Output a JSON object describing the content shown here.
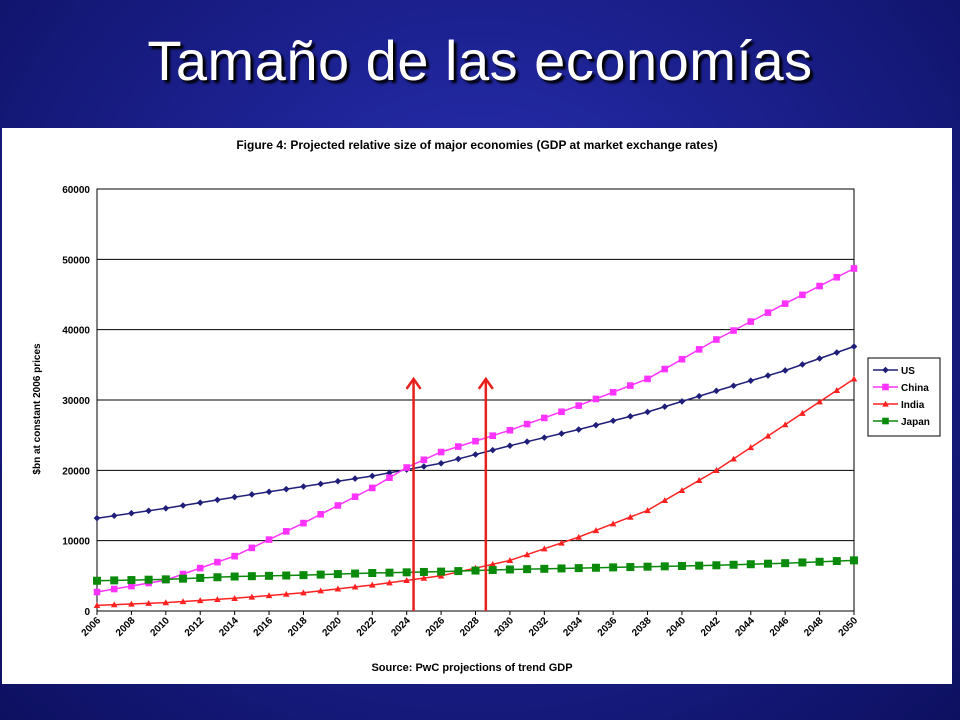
{
  "slide": {
    "title": "Tamaño de las economías"
  },
  "chart_data": {
    "type": "line",
    "title": "Figure 4: Projected relative size of major economies (GDP at market exchange rates)",
    "xlabel": "Source: PwC projections of trend GDP",
    "ylabel": "$bn at constant 2006 prices",
    "ylim": [
      0,
      60000
    ],
    "xlim": [
      2006,
      2050
    ],
    "yticks": [
      "0",
      "10000",
      "20000",
      "30000",
      "40000",
      "50000",
      "60000"
    ],
    "xticks": [
      "2006",
      "2008",
      "2010",
      "2012",
      "2014",
      "2016",
      "2018",
      "2020",
      "2022",
      "2024",
      "2026",
      "2028",
      "2030",
      "2032",
      "2034",
      "2036",
      "2038",
      "2040",
      "2042",
      "2044",
      "2046",
      "2048",
      "2050"
    ],
    "grid": "horizontal",
    "legend_position": "right",
    "series": [
      {
        "name": "US",
        "color": "#1f1f7a",
        "marker": "diamond",
        "x": [
          2006,
          2010,
          2014,
          2018,
          2022,
          2026,
          2030,
          2034,
          2038,
          2042,
          2046,
          2050
        ],
        "y": [
          13200,
          14600,
          16200,
          17700,
          19200,
          21000,
          23500,
          25800,
          28300,
          31300,
          34200,
          37600
        ]
      },
      {
        "name": "China",
        "color": "#ff33ff",
        "marker": "square",
        "x": [
          2006,
          2010,
          2014,
          2018,
          2022,
          2024,
          2026,
          2030,
          2034,
          2038,
          2042,
          2046,
          2050
        ],
        "y": [
          2700,
          4400,
          7800,
          12500,
          17500,
          20400,
          22600,
          25700,
          29200,
          33000,
          38600,
          43700,
          48700
        ]
      },
      {
        "name": "India",
        "color": "#ff2020",
        "marker": "triangle",
        "x": [
          2006,
          2010,
          2014,
          2018,
          2022,
          2026,
          2030,
          2034,
          2038,
          2042,
          2046,
          2050
        ],
        "y": [
          800,
          1200,
          1800,
          2600,
          3700,
          5000,
          7200,
          10500,
          14300,
          20000,
          26500,
          33000
        ]
      },
      {
        "name": "Japan",
        "color": "#0a8a0a",
        "marker": "square",
        "x": [
          2006,
          2010,
          2014,
          2018,
          2022,
          2026,
          2030,
          2034,
          2038,
          2042,
          2046,
          2050
        ],
        "y": [
          4300,
          4500,
          4900,
          5100,
          5400,
          5600,
          5900,
          6100,
          6300,
          6500,
          6800,
          7200
        ]
      }
    ],
    "annotations": [
      {
        "type": "arrow",
        "color": "#e8201c",
        "x": 2024.4,
        "y_from": 0,
        "y_to": 33000
      },
      {
        "type": "arrow",
        "color": "#e8201c",
        "x": 2028.6,
        "y_from": 0,
        "y_to": 33000
      }
    ]
  }
}
